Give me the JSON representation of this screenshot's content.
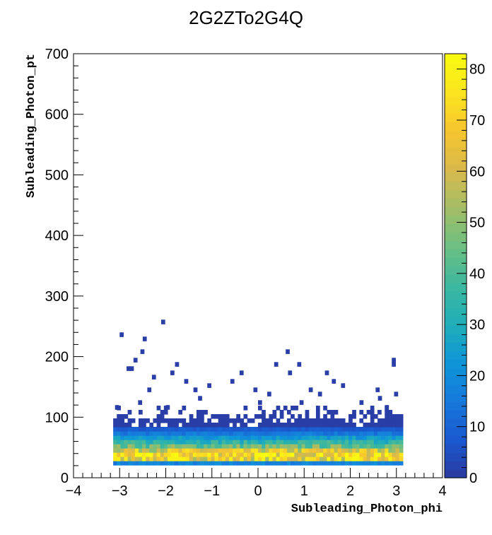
{
  "chart_data": {
    "type": "heatmap",
    "title": "2G2ZTo2G4Q",
    "xlabel": "Subleading_Photon_phi",
    "ylabel": "Subleading_Photon_pt",
    "xlim": [
      -4,
      4
    ],
    "ylim": [
      0,
      700
    ],
    "x_ticks": [
      "-4",
      "-3",
      "-2",
      "-1",
      "0",
      "1",
      "2",
      "3",
      "4"
    ],
    "y_ticks": [
      "0",
      "100",
      "200",
      "300",
      "400",
      "500",
      "600",
      "700"
    ],
    "colorbar": {
      "min": 0,
      "max": 83,
      "ticks": [
        "0",
        "10",
        "20",
        "30",
        "40",
        "50",
        "60",
        "70",
        "80"
      ]
    },
    "bins": {
      "x_width": 0.0785,
      "y_width": 7,
      "x_range": [
        -3.14,
        3.14
      ]
    },
    "dense_band": {
      "y_range": [
        21,
        84
      ],
      "row_levels": [
        {
          "y": 21,
          "level": 18
        },
        {
          "y": 28,
          "level": 68
        },
        {
          "y": 35,
          "level": 72
        },
        {
          "y": 42,
          "level": 62
        },
        {
          "y": 49,
          "level": 45
        },
        {
          "y": 56,
          "level": 34
        },
        {
          "y": 63,
          "level": 24
        },
        {
          "y": 70,
          "level": 15
        },
        {
          "y": 77,
          "level": 8
        }
      ]
    },
    "outliers": [
      [
        -3.0,
        233
      ],
      [
        -2.5,
        226
      ],
      [
        -2.1,
        254
      ],
      [
        -2.55,
        205
      ],
      [
        -2.7,
        191
      ],
      [
        -2.85,
        177
      ],
      [
        -2.78,
        177
      ],
      [
        -1.8,
        184
      ],
      [
        -1.9,
        170
      ],
      [
        -2.3,
        163
      ],
      [
        -1.6,
        156
      ],
      [
        -2.4,
        142
      ],
      [
        -1.4,
        142
      ],
      [
        -0.4,
        170
      ],
      [
        -0.6,
        156
      ],
      [
        0.6,
        205
      ],
      [
        0.35,
        184
      ],
      [
        0.85,
        184
      ],
      [
        0.65,
        170
      ],
      [
        -1.1,
        149
      ],
      [
        -0.1,
        142
      ],
      [
        0.2,
        135
      ],
      [
        1.45,
        170
      ],
      [
        1.6,
        156
      ],
      [
        1.8,
        149
      ],
      [
        2.9,
        191
      ],
      [
        2.9,
        184
      ],
      [
        2.95,
        135
      ],
      [
        2.55,
        142
      ],
      [
        2.6,
        128
      ],
      [
        1.1,
        142
      ],
      [
        1.3,
        135
      ],
      [
        -3.1,
        113
      ],
      [
        -2.6,
        121
      ],
      [
        -1.3,
        128
      ],
      [
        0.9,
        121
      ],
      [
        2.2,
        121
      ],
      [
        2.75,
        113
      ],
      [
        -2.0,
        113
      ],
      [
        0.0,
        121
      ]
    ]
  }
}
